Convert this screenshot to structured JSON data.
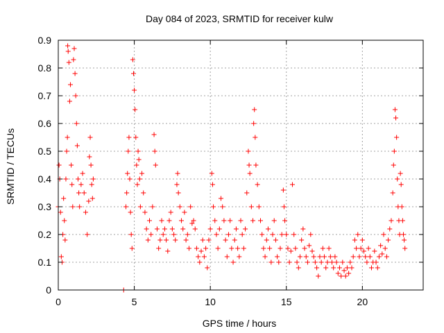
{
  "chart_data": {
    "type": "scatter",
    "title": "Day 084 of 2023, SRMTID for receiver kulw",
    "xlabel": "GPS time / hours",
    "ylabel": "SRMTID / TECUs",
    "xlim": [
      0,
      24
    ],
    "ylim": [
      0,
      0.9
    ],
    "x_ticks": [
      0,
      5,
      10,
      15,
      20
    ],
    "y_ticks": [
      0,
      0.1,
      0.2,
      0.3,
      0.4,
      0.5,
      0.6,
      0.7,
      0.8,
      0.9
    ],
    "x_tick_labels": [
      "0",
      "5",
      "10",
      "15",
      "20"
    ],
    "y_tick_labels": [
      "0",
      "0.1",
      "0.2",
      "0.3",
      "0.4",
      "0.5",
      "0.6",
      "0.7",
      "0.8",
      "0.9"
    ],
    "grid": true,
    "marker": "plus",
    "color": "#ff0000",
    "series": [
      {
        "name": "SRMTID",
        "points": [
          [
            0.0,
            0.3
          ],
          [
            0.05,
            0.45
          ],
          [
            0.1,
            0.4
          ],
          [
            0.15,
            0.28
          ],
          [
            0.2,
            0.12
          ],
          [
            0.25,
            0.1
          ],
          [
            0.3,
            0.2
          ],
          [
            0.35,
            0.33
          ],
          [
            0.4,
            0.25
          ],
          [
            0.45,
            0.18
          ],
          [
            0.5,
            0.4
          ],
          [
            0.55,
            0.5
          ],
          [
            0.6,
            0.55
          ],
          [
            0.62,
            0.88
          ],
          [
            0.65,
            0.86
          ],
          [
            0.7,
            0.82
          ],
          [
            0.75,
            0.68
          ],
          [
            0.8,
            0.74
          ],
          [
            0.85,
            0.45
          ],
          [
            0.9,
            0.38
          ],
          [
            0.95,
            0.3
          ],
          [
            1.0,
            0.83
          ],
          [
            1.05,
            0.87
          ],
          [
            1.1,
            0.78
          ],
          [
            1.15,
            0.7
          ],
          [
            1.2,
            0.6
          ],
          [
            1.25,
            0.52
          ],
          [
            1.3,
            0.4
          ],
          [
            1.35,
            0.35
          ],
          [
            1.4,
            0.3
          ],
          [
            1.5,
            0.38
          ],
          [
            1.6,
            0.42
          ],
          [
            1.7,
            0.35
          ],
          [
            1.8,
            0.28
          ],
          [
            1.9,
            0.2
          ],
          [
            2.0,
            0.32
          ],
          [
            2.05,
            0.48
          ],
          [
            2.1,
            0.55
          ],
          [
            2.15,
            0.45
          ],
          [
            2.2,
            0.38
          ],
          [
            2.25,
            0.33
          ],
          [
            2.3,
            0.4
          ],
          [
            4.3,
            0.0
          ],
          [
            4.45,
            0.3
          ],
          [
            4.5,
            0.35
          ],
          [
            4.55,
            0.42
          ],
          [
            4.6,
            0.5
          ],
          [
            4.65,
            0.55
          ],
          [
            4.7,
            0.4
          ],
          [
            4.75,
            0.28
          ],
          [
            4.8,
            0.2
          ],
          [
            4.85,
            0.15
          ],
          [
            4.9,
            0.83
          ],
          [
            4.95,
            0.78
          ],
          [
            5.0,
            0.72
          ],
          [
            5.05,
            0.65
          ],
          [
            5.1,
            0.55
          ],
          [
            5.15,
            0.45
          ],
          [
            5.2,
            0.38
          ],
          [
            5.25,
            0.5
          ],
          [
            5.3,
            0.47
          ],
          [
            5.35,
            0.4
          ],
          [
            5.4,
            0.3
          ],
          [
            5.5,
            0.42
          ],
          [
            5.6,
            0.35
          ],
          [
            5.7,
            0.28
          ],
          [
            5.8,
            0.22
          ],
          [
            5.9,
            0.18
          ],
          [
            6.0,
            0.25
          ],
          [
            6.1,
            0.2
          ],
          [
            6.2,
            0.3
          ],
          [
            6.3,
            0.56
          ],
          [
            6.35,
            0.5
          ],
          [
            6.4,
            0.45
          ],
          [
            6.5,
            0.22
          ],
          [
            6.6,
            0.15
          ],
          [
            6.7,
            0.18
          ],
          [
            6.8,
            0.25
          ],
          [
            6.9,
            0.2
          ],
          [
            7.0,
            0.22
          ],
          [
            7.1,
            0.18
          ],
          [
            7.2,
            0.14
          ],
          [
            7.3,
            0.25
          ],
          [
            7.4,
            0.28
          ],
          [
            7.5,
            0.22
          ],
          [
            7.6,
            0.2
          ],
          [
            7.7,
            0.18
          ],
          [
            7.8,
            0.38
          ],
          [
            7.85,
            0.42
          ],
          [
            7.9,
            0.35
          ],
          [
            8.0,
            0.3
          ],
          [
            8.1,
            0.25
          ],
          [
            8.2,
            0.22
          ],
          [
            8.3,
            0.28
          ],
          [
            8.4,
            0.18
          ],
          [
            8.5,
            0.2
          ],
          [
            8.6,
            0.15
          ],
          [
            8.7,
            0.3
          ],
          [
            8.8,
            0.24
          ],
          [
            8.9,
            0.25
          ],
          [
            9.0,
            0.22
          ],
          [
            9.1,
            0.15
          ],
          [
            9.2,
            0.12
          ],
          [
            9.3,
            0.1
          ],
          [
            9.4,
            0.14
          ],
          [
            9.5,
            0.18
          ],
          [
            9.6,
            0.12
          ],
          [
            9.7,
            0.15
          ],
          [
            9.8,
            0.08
          ],
          [
            9.9,
            0.18
          ],
          [
            10.0,
            0.22
          ],
          [
            10.1,
            0.42
          ],
          [
            10.15,
            0.38
          ],
          [
            10.2,
            0.3
          ],
          [
            10.3,
            0.25
          ],
          [
            10.4,
            0.2
          ],
          [
            10.5,
            0.15
          ],
          [
            10.6,
            0.22
          ],
          [
            10.7,
            0.33
          ],
          [
            10.8,
            0.3
          ],
          [
            10.9,
            0.25
          ],
          [
            11.0,
            0.18
          ],
          [
            11.1,
            0.12
          ],
          [
            11.2,
            0.2
          ],
          [
            11.3,
            0.25
          ],
          [
            11.4,
            0.15
          ],
          [
            11.5,
            0.1
          ],
          [
            11.6,
            0.18
          ],
          [
            11.7,
            0.22
          ],
          [
            11.8,
            0.15
          ],
          [
            11.9,
            0.12
          ],
          [
            12.0,
            0.25
          ],
          [
            12.1,
            0.2
          ],
          [
            12.2,
            0.15
          ],
          [
            12.3,
            0.22
          ],
          [
            12.4,
            0.35
          ],
          [
            12.5,
            0.5
          ],
          [
            12.55,
            0.45
          ],
          [
            12.6,
            0.42
          ],
          [
            12.7,
            0.3
          ],
          [
            12.8,
            0.25
          ],
          [
            12.85,
            0.6
          ],
          [
            12.9,
            0.65
          ],
          [
            12.95,
            0.55
          ],
          [
            13.0,
            0.45
          ],
          [
            13.1,
            0.38
          ],
          [
            13.2,
            0.3
          ],
          [
            13.3,
            0.25
          ],
          [
            13.4,
            0.2
          ],
          [
            13.5,
            0.15
          ],
          [
            13.6,
            0.12
          ],
          [
            13.7,
            0.18
          ],
          [
            13.8,
            0.22
          ],
          [
            13.9,
            0.15
          ],
          [
            14.0,
            0.1
          ],
          [
            14.1,
            0.2
          ],
          [
            14.2,
            0.25
          ],
          [
            14.3,
            0.18
          ],
          [
            14.4,
            0.12
          ],
          [
            14.5,
            0.1
          ],
          [
            14.6,
            0.15
          ],
          [
            14.7,
            0.2
          ],
          [
            14.8,
            0.36
          ],
          [
            14.85,
            0.3
          ],
          [
            14.9,
            0.25
          ],
          [
            15.0,
            0.2
          ],
          [
            15.1,
            0.15
          ],
          [
            15.2,
            0.1
          ],
          [
            15.3,
            0.14
          ],
          [
            15.4,
            0.38
          ],
          [
            15.5,
            0.2
          ],
          [
            15.6,
            0.15
          ],
          [
            15.7,
            0.1
          ],
          [
            15.8,
            0.08
          ],
          [
            15.9,
            0.12
          ],
          [
            16.0,
            0.18
          ],
          [
            16.1,
            0.22
          ],
          [
            16.2,
            0.15
          ],
          [
            16.3,
            0.12
          ],
          [
            16.4,
            0.1
          ],
          [
            16.5,
            0.16
          ],
          [
            16.6,
            0.2
          ],
          [
            16.7,
            0.14
          ],
          [
            16.8,
            0.12
          ],
          [
            16.9,
            0.1
          ],
          [
            17.0,
            0.08
          ],
          [
            17.1,
            0.05
          ],
          [
            17.2,
            0.12
          ],
          [
            17.3,
            0.1
          ],
          [
            17.4,
            0.15
          ],
          [
            17.5,
            0.12
          ],
          [
            17.6,
            0.08
          ],
          [
            17.7,
            0.1
          ],
          [
            17.8,
            0.15
          ],
          [
            17.9,
            0.12
          ],
          [
            18.0,
            0.1
          ],
          [
            18.1,
            0.08
          ],
          [
            18.2,
            0.12
          ],
          [
            18.3,
            0.1
          ],
          [
            18.4,
            0.06
          ],
          [
            18.5,
            0.08
          ],
          [
            18.6,
            0.05
          ],
          [
            18.7,
            0.1
          ],
          [
            18.8,
            0.07
          ],
          [
            18.9,
            0.05
          ],
          [
            19.0,
            0.08
          ],
          [
            19.1,
            0.06
          ],
          [
            19.2,
            0.1
          ],
          [
            19.3,
            0.08
          ],
          [
            19.4,
            0.12
          ],
          [
            19.5,
            0.18
          ],
          [
            19.6,
            0.15
          ],
          [
            19.7,
            0.2
          ],
          [
            19.8,
            0.12
          ],
          [
            19.9,
            0.15
          ],
          [
            20.0,
            0.18
          ],
          [
            20.1,
            0.14
          ],
          [
            20.2,
            0.12
          ],
          [
            20.3,
            0.1
          ],
          [
            20.4,
            0.15
          ],
          [
            20.5,
            0.12
          ],
          [
            20.6,
            0.08
          ],
          [
            20.7,
            0.1
          ],
          [
            20.8,
            0.14
          ],
          [
            20.9,
            0.1
          ],
          [
            21.0,
            0.08
          ],
          [
            21.1,
            0.12
          ],
          [
            21.2,
            0.16
          ],
          [
            21.3,
            0.13
          ],
          [
            21.4,
            0.2
          ],
          [
            21.5,
            0.15
          ],
          [
            21.6,
            0.12
          ],
          [
            21.7,
            0.18
          ],
          [
            21.8,
            0.22
          ],
          [
            21.9,
            0.25
          ],
          [
            22.0,
            0.35
          ],
          [
            22.05,
            0.45
          ],
          [
            22.1,
            0.5
          ],
          [
            22.15,
            0.65
          ],
          [
            22.2,
            0.62
          ],
          [
            22.25,
            0.55
          ],
          [
            22.3,
            0.4
          ],
          [
            22.35,
            0.3
          ],
          [
            22.4,
            0.25
          ],
          [
            22.45,
            0.2
          ],
          [
            22.5,
            0.42
          ],
          [
            22.55,
            0.38
          ],
          [
            22.6,
            0.3
          ],
          [
            22.65,
            0.25
          ],
          [
            22.7,
            0.2
          ],
          [
            22.75,
            0.18
          ],
          [
            22.8,
            0.15
          ]
        ]
      }
    ]
  }
}
